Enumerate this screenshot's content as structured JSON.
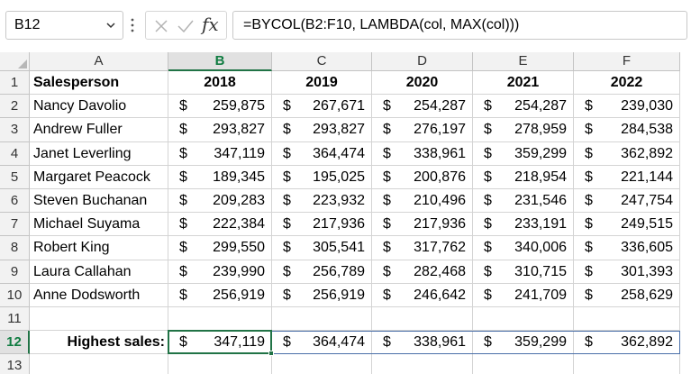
{
  "formula_bar": {
    "name_box": "B12",
    "formula": "=BYCOL(B2:F10, LAMBDA(col, MAX(col)))",
    "fx_label": "fx"
  },
  "columns": [
    "A",
    "B",
    "C",
    "D",
    "E",
    "F"
  ],
  "rows": [
    "1",
    "2",
    "3",
    "4",
    "5",
    "6",
    "7",
    "8",
    "9",
    "10",
    "11",
    "12",
    "13"
  ],
  "table": {
    "header_name": "Salesperson",
    "years": [
      "2018",
      "2019",
      "2020",
      "2021",
      "2022"
    ],
    "currency": "$",
    "records": [
      {
        "name": "Nancy Davolio",
        "values": [
          "259,875",
          "267,671",
          "254,287",
          "254,287",
          "239,030"
        ]
      },
      {
        "name": "Andrew Fuller",
        "values": [
          "293,827",
          "293,827",
          "276,197",
          "278,959",
          "284,538"
        ]
      },
      {
        "name": "Janet Leverling",
        "values": [
          "347,119",
          "364,474",
          "338,961",
          "359,299",
          "362,892"
        ]
      },
      {
        "name": "Margaret Peacock",
        "values": [
          "189,345",
          "195,025",
          "200,876",
          "218,954",
          "221,144"
        ]
      },
      {
        "name": "Steven Buchanan",
        "values": [
          "209,283",
          "223,932",
          "210,496",
          "231,546",
          "247,754"
        ]
      },
      {
        "name": "Michael Suyama",
        "values": [
          "222,384",
          "217,936",
          "217,936",
          "233,191",
          "249,515"
        ]
      },
      {
        "name": "Robert King",
        "values": [
          "299,550",
          "305,541",
          "317,762",
          "340,006",
          "336,605"
        ]
      },
      {
        "name": "Laura Callahan",
        "values": [
          "239,990",
          "256,789",
          "282,468",
          "310,715",
          "301,393"
        ]
      },
      {
        "name": "Anne Dodsworth",
        "values": [
          "256,919",
          "256,919",
          "246,642",
          "241,709",
          "258,629"
        ]
      }
    ],
    "summary_label": "Highest sales:",
    "summary_values": [
      "347,119",
      "364,474",
      "338,961",
      "359,299",
      "362,892"
    ]
  },
  "selection": {
    "active_cell": "B12",
    "active_column": "B",
    "active_row": "12"
  },
  "colors": {
    "accent": "#217346",
    "spill_border": "#4a6fa8",
    "header_bg": "#f2f2f2"
  }
}
